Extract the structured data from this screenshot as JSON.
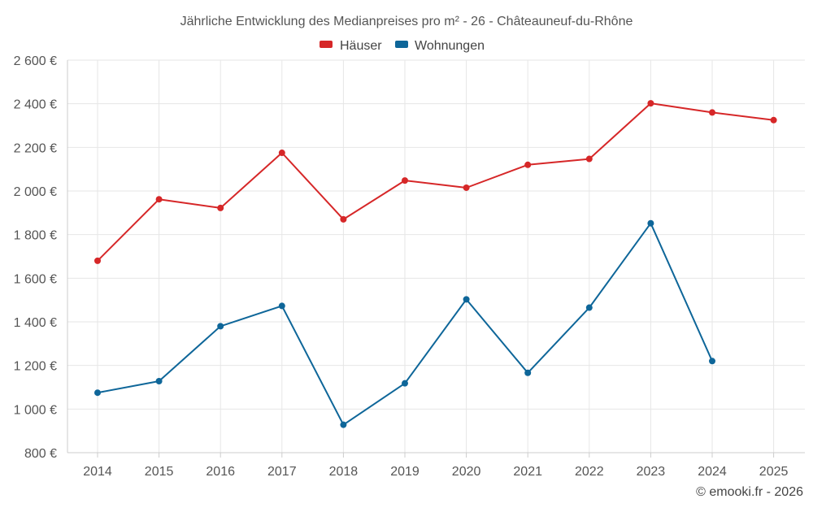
{
  "chart_data": {
    "type": "line",
    "title": "Jährliche Entwicklung des Medianpreises pro m² - 26 - Châteauneuf-du-Rhône",
    "categories": [
      "2014",
      "2015",
      "2016",
      "2017",
      "2018",
      "2019",
      "2020",
      "2021",
      "2022",
      "2023",
      "2024",
      "2025"
    ],
    "ylim": [
      800,
      2600
    ],
    "yticks": [
      800,
      1000,
      1200,
      1400,
      1600,
      1800,
      2000,
      2200,
      2400,
      2600
    ],
    "ytick_labels": [
      "800 €",
      "1 000 €",
      "1 200 €",
      "1 400 €",
      "1 600 €",
      "1 800 €",
      "2 000 €",
      "2 200 €",
      "2 400 €",
      "2 600 €"
    ],
    "legend_position": "top-center",
    "grid": true,
    "series": [
      {
        "name": "Häuser",
        "color": "#d62728",
        "values": [
          1680,
          1962,
          1922,
          2175,
          1870,
          2048,
          2015,
          2120,
          2147,
          2402,
          2360,
          2325
        ]
      },
      {
        "name": "Wohnungen",
        "color": "#0e6699",
        "values": [
          1075,
          1128,
          1380,
          1473,
          928,
          1118,
          1503,
          1166,
          1465,
          1852,
          1220,
          null
        ]
      }
    ],
    "credit": "© emooki.fr - 2026"
  }
}
